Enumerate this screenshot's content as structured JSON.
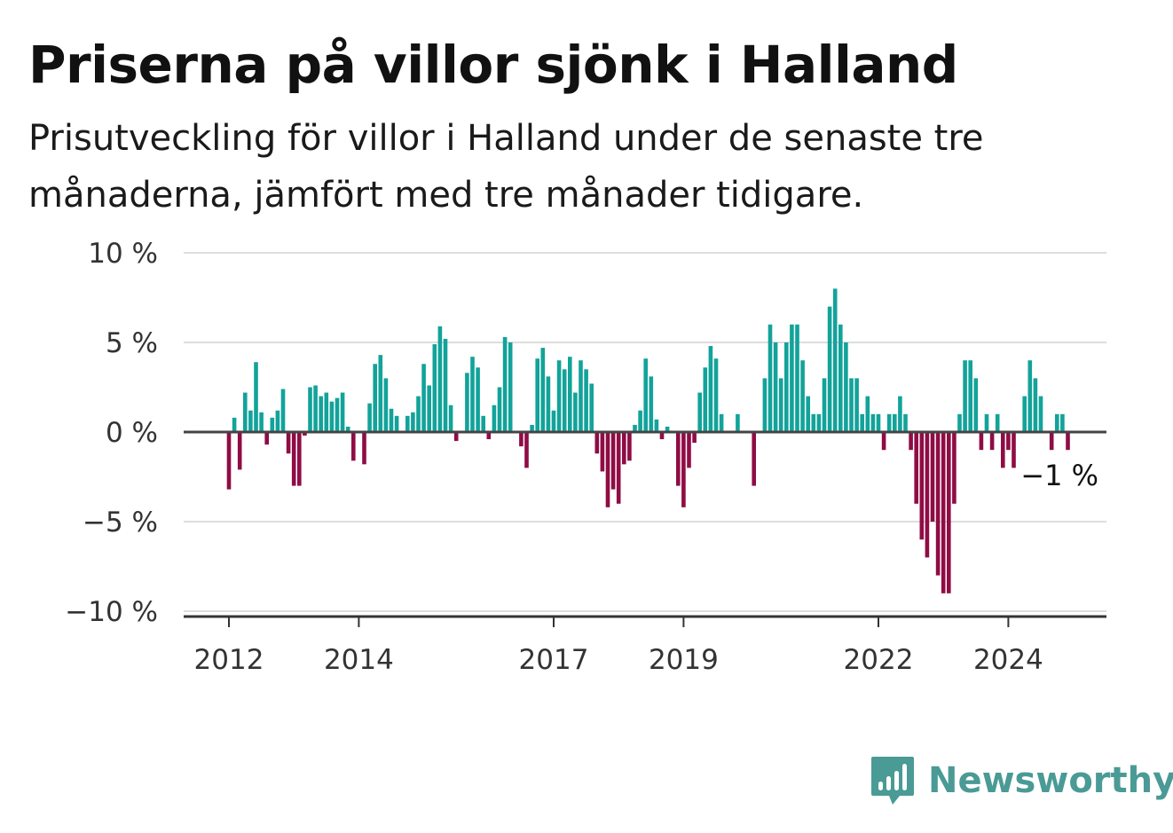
{
  "header": {
    "title": "Priserna på villor sjönk i Halland",
    "subtitle": "Prisutveckling för villor i Halland under de senaste tre månaderna, jämfört med tre månader tidigare."
  },
  "brand": {
    "name": "Newsworthy",
    "logo_icon": "bar-chart-speech-bubble-icon",
    "color": "#4a9a95"
  },
  "chart_data": {
    "type": "bar",
    "ylim": [
      -10,
      10
    ],
    "y_ticks": [
      {
        "value": 10,
        "label": "10 %"
      },
      {
        "value": 5,
        "label": "5 %"
      },
      {
        "value": 0,
        "label": "0 %"
      },
      {
        "value": -5,
        "label": "−5 %"
      },
      {
        "value": -10,
        "label": "−10 %"
      }
    ],
    "x_ticks": [
      {
        "month_index": 0,
        "label": "2012"
      },
      {
        "month_index": 24,
        "label": "2014"
      },
      {
        "month_index": 60,
        "label": "2017"
      },
      {
        "month_index": 84,
        "label": "2019"
      },
      {
        "month_index": 120,
        "label": "2022"
      },
      {
        "month_index": 144,
        "label": "2024"
      }
    ],
    "grid": true,
    "colors": {
      "positive": "#12a39a",
      "negative": "#8f0c45",
      "grid": "#dddddd",
      "zero_line": "#444444"
    },
    "annotation": {
      "text": "−1 %"
    },
    "values": [
      -3.2,
      0.8,
      -2.1,
      2.2,
      1.2,
      3.9,
      1.1,
      -0.7,
      0.8,
      1.2,
      2.4,
      -1.2,
      -3.0,
      -3.0,
      -0.2,
      2.5,
      2.6,
      2.0,
      2.2,
      1.7,
      1.9,
      2.2,
      0.3,
      -1.6,
      0.0,
      -1.8,
      1.6,
      3.8,
      4.3,
      3.0,
      1.3,
      0.9,
      0.0,
      0.9,
      1.1,
      2.0,
      3.8,
      2.6,
      4.9,
      5.9,
      5.2,
      1.5,
      -0.5,
      0.0,
      3.3,
      4.2,
      3.6,
      0.9,
      -0.4,
      1.5,
      2.5,
      5.3,
      5.0,
      0.0,
      -0.8,
      -2.0,
      0.4,
      4.1,
      4.7,
      3.1,
      1.2,
      4.0,
      3.5,
      4.2,
      2.2,
      4.0,
      3.5,
      2.7,
      -1.2,
      -2.2,
      -4.2,
      -3.2,
      -4.0,
      -1.8,
      -1.6,
      0.4,
      1.2,
      4.1,
      3.1,
      0.7,
      -0.4,
      0.3,
      0.0,
      -3.0,
      -4.2,
      -2.0,
      -0.6,
      2.2,
      3.6,
      4.8,
      4.1,
      1.0,
      0.0,
      0.0,
      1.0,
      0.0,
      0.0,
      -3.0,
      0.0,
      3.0,
      6.0,
      5.0,
      3.0,
      5.0,
      6.0,
      6.0,
      4.0,
      2.0,
      1.0,
      1.0,
      3.0,
      7.0,
      8.0,
      6.0,
      5.0,
      3.0,
      3.0,
      1.0,
      2.0,
      1.0,
      1.0,
      -1.0,
      1.0,
      1.0,
      2.0,
      1.0,
      -1.0,
      -4.0,
      -6.0,
      -7.0,
      -5.0,
      -8.0,
      -9.0,
      -9.0,
      -4.0,
      1.0,
      4.0,
      4.0,
      3.0,
      -1.0,
      1.0,
      -1.0,
      1.0,
      -2.0,
      -1.0,
      -2.0,
      0.0,
      2.0,
      4.0,
      3.0,
      2.0,
      0.0,
      -1.0,
      1.0,
      1.0,
      -1.0
    ]
  }
}
